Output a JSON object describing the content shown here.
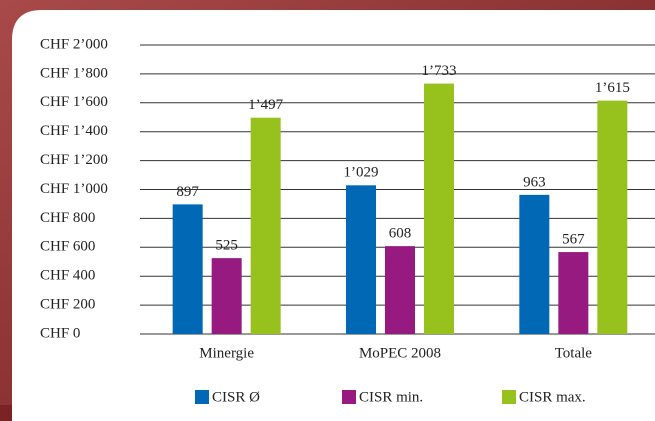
{
  "chart_data": {
    "type": "bar",
    "categories": [
      "Minergie",
      "MoPEC 2008",
      "Totale"
    ],
    "series": [
      {
        "name": "CISR Ø",
        "color": "#0068b4",
        "values": [
          897,
          1029,
          963
        ],
        "value_labels": [
          "897",
          "1’029",
          "963"
        ]
      },
      {
        "name": "CISR min.",
        "color": "#961a7f",
        "values": [
          525,
          608,
          567
        ],
        "value_labels": [
          "525",
          "608",
          "567"
        ]
      },
      {
        "name": "CISR max.",
        "color": "#97c21e",
        "values": [
          1497,
          1733,
          1615
        ],
        "value_labels": [
          "1’497",
          "1’733",
          "1’615"
        ]
      }
    ],
    "ylim": [
      0,
      2000
    ],
    "yticks": [
      {
        "value": 0,
        "label": "CHF 0"
      },
      {
        "value": 200,
        "label": "CHF 200"
      },
      {
        "value": 400,
        "label": "CHF 400"
      },
      {
        "value": 600,
        "label": "CHF 600"
      },
      {
        "value": 800,
        "label": "CHF 800"
      },
      {
        "value": 1000,
        "label": "CHF 1’000"
      },
      {
        "value": 1200,
        "label": "CHF 1’200"
      },
      {
        "value": 1400,
        "label": "CHF 1’400"
      },
      {
        "value": 1600,
        "label": "CHF 1’600"
      },
      {
        "value": 1800,
        "label": "CHF 1’800"
      },
      {
        "value": 2000,
        "label": "CHF 2’000"
      }
    ],
    "grid": true
  }
}
